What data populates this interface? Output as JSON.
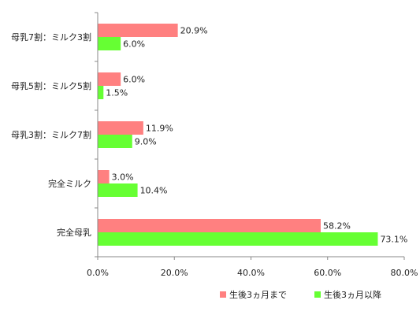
{
  "chart_data": {
    "type": "bar",
    "orientation": "horizontal",
    "categories": [
      "母乳7割：ミルク3割",
      "母乳5割：ミルク5割",
      "母乳3割：ミルク7割",
      "完全ミルク",
      "完全母乳"
    ],
    "series": [
      {
        "name": "生後3ヵ月まで",
        "color": "#ff8080",
        "values": [
          20.9,
          6.0,
          11.9,
          3.0,
          58.2
        ],
        "labels": [
          "20.9%",
          "6.0%",
          "11.9%",
          "3.0%",
          "58.2%"
        ]
      },
      {
        "name": "生後3ヵ月以降",
        "color": "#66ff33",
        "values": [
          6.0,
          1.5,
          9.0,
          10.4,
          73.1
        ],
        "labels": [
          "6.0%",
          "1.5%",
          "9.0%",
          "10.4%",
          "73.1%"
        ]
      }
    ],
    "xlim": [
      0,
      80
    ],
    "xticks": [
      "0.0%",
      "20.0%",
      "40.0%",
      "60.0%",
      "80.0%"
    ],
    "grid": false,
    "legend_position": "bottom-right"
  }
}
